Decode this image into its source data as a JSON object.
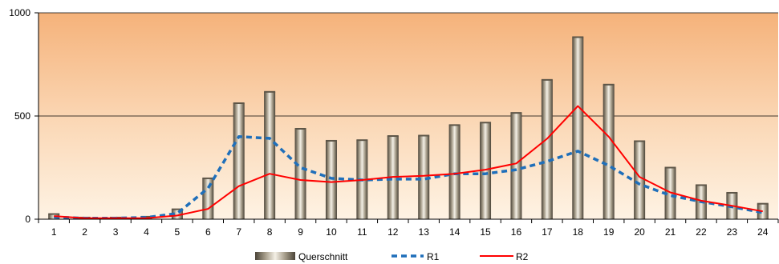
{
  "chart_data": {
    "type": "bar",
    "categories": [
      "1",
      "2",
      "3",
      "4",
      "5",
      "6",
      "7",
      "8",
      "9",
      "10",
      "11",
      "12",
      "13",
      "14",
      "15",
      "16",
      "17",
      "18",
      "19",
      "20",
      "21",
      "22",
      "23",
      "24"
    ],
    "ylim": [
      0,
      1000
    ],
    "yticks": [
      "0",
      "500",
      "1000"
    ],
    "grid": true,
    "legend_position": "bottom",
    "series": [
      {
        "name": "Querschnitt",
        "type": "bar",
        "values": [
          25,
          8,
          8,
          12,
          48,
          198,
          562,
          617,
          438,
          380,
          383,
          403,
          405,
          456,
          468,
          515,
          675,
          882,
          652,
          378,
          250,
          165,
          128,
          75
        ]
      },
      {
        "name": "R1",
        "type": "line",
        "style": "dashed",
        "values": [
          10,
          5,
          5,
          8,
          28,
          150,
          400,
          392,
          250,
          198,
          190,
          194,
          194,
          220,
          220,
          240,
          280,
          330,
          260,
          170,
          115,
          85,
          60,
          32
        ]
      },
      {
        "name": "R2",
        "type": "line",
        "style": "solid",
        "values": [
          15,
          5,
          5,
          5,
          18,
          50,
          160,
          220,
          190,
          180,
          190,
          205,
          210,
          220,
          240,
          270,
          390,
          548,
          400,
          205,
          130,
          90,
          65,
          38
        ]
      }
    ],
    "colors": {
      "bar": "#b0a999",
      "r1": "#1f6fba",
      "r2": "#ff0000",
      "background_top": "#f5b27a",
      "background_bottom": "#fef3e4"
    }
  }
}
